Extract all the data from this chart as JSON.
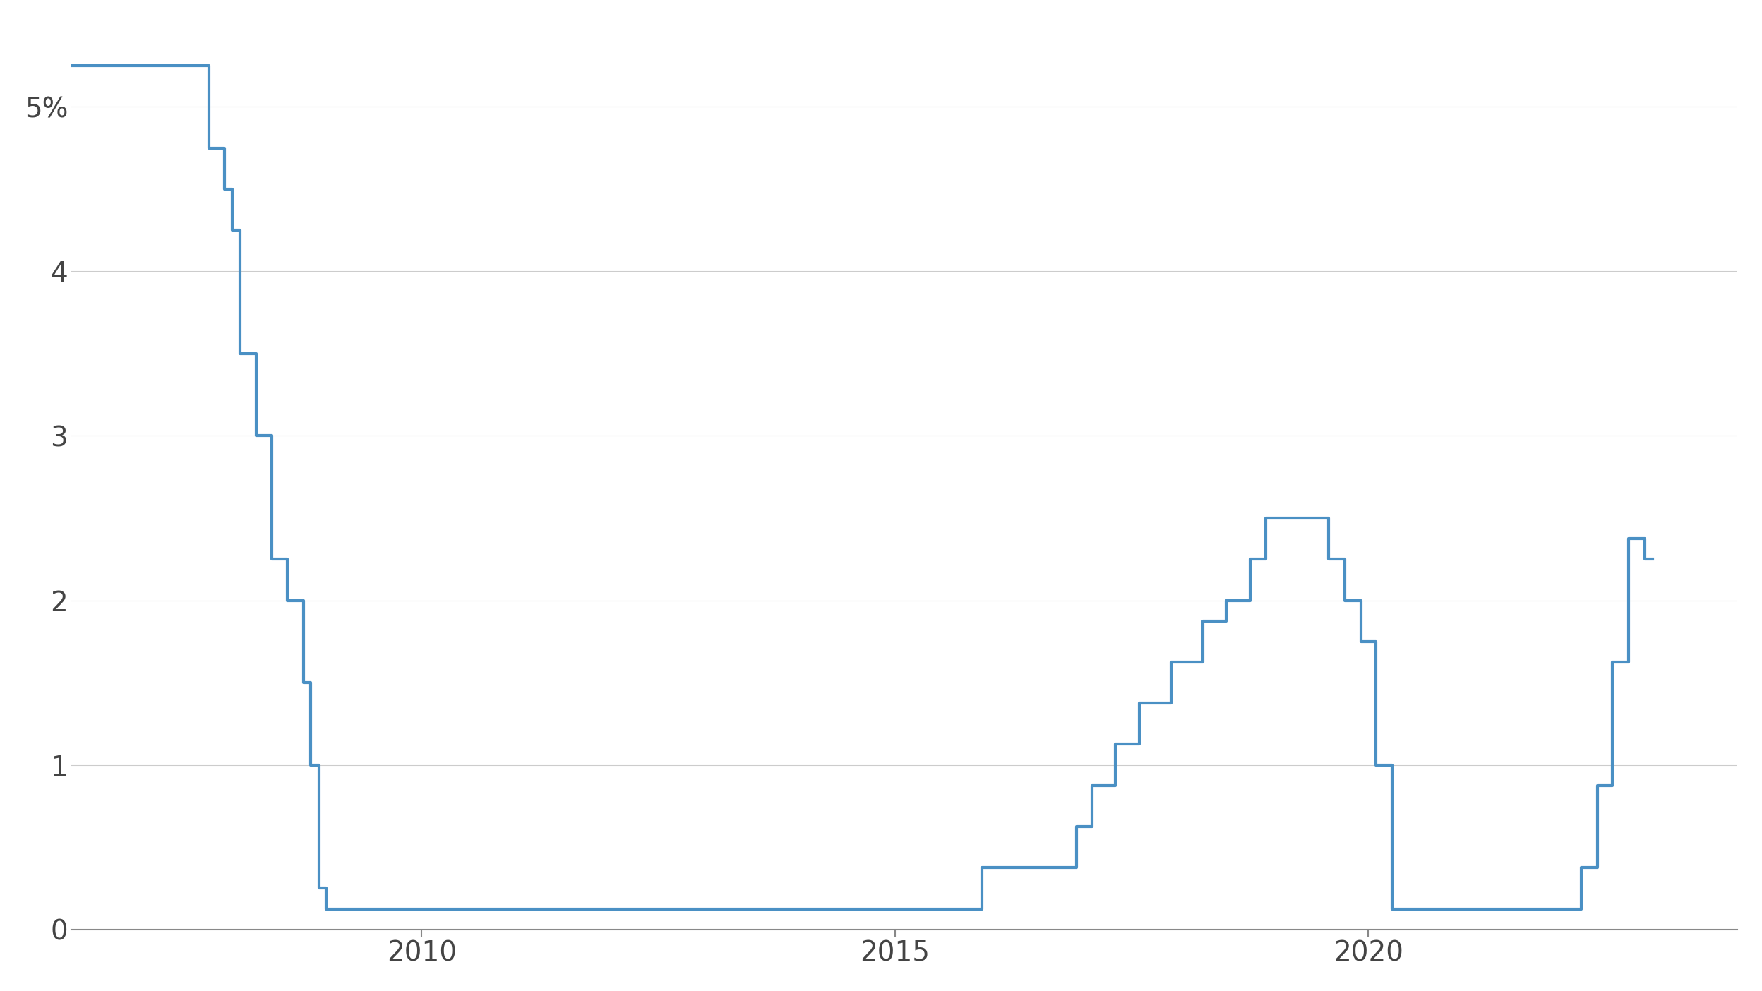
{
  "line_color": "#4a90c4",
  "background_color": "#ffffff",
  "line_width": 3.0,
  "yticks": [
    0,
    1,
    2,
    3,
    4,
    5
  ],
  "ytick_labels": [
    "0",
    "1",
    "2",
    "3",
    "4",
    "5%"
  ],
  "xticks": [
    2010,
    2015,
    2020
  ],
  "xlim": [
    2006.3,
    2023.9
  ],
  "ylim": [
    0,
    5.5
  ],
  "grid_color": "#cccccc",
  "grid_linewidth": 0.8,
  "rate_steps": [
    [
      2006.3,
      5.25
    ],
    [
      2007.75,
      4.75
    ],
    [
      2007.92,
      4.5
    ],
    [
      2008.0,
      4.25
    ],
    [
      2008.08,
      3.5
    ],
    [
      2008.25,
      3.0
    ],
    [
      2008.42,
      2.25
    ],
    [
      2008.58,
      2.0
    ],
    [
      2008.75,
      1.5
    ],
    [
      2008.83,
      1.0
    ],
    [
      2008.92,
      0.25
    ],
    [
      2008.99,
      0.125
    ],
    [
      2015.92,
      0.375
    ],
    [
      2016.92,
      0.625
    ],
    [
      2017.08,
      0.875
    ],
    [
      2017.33,
      1.125
    ],
    [
      2017.58,
      1.375
    ],
    [
      2017.92,
      1.625
    ],
    [
      2018.25,
      1.875
    ],
    [
      2018.5,
      2.0
    ],
    [
      2018.75,
      2.25
    ],
    [
      2018.92,
      2.5
    ],
    [
      2019.58,
      2.25
    ],
    [
      2019.75,
      2.0
    ],
    [
      2019.92,
      1.75
    ],
    [
      2020.08,
      1.0
    ],
    [
      2020.25,
      0.125
    ],
    [
      2022.25,
      0.375
    ],
    [
      2022.42,
      0.875
    ],
    [
      2022.58,
      1.625
    ],
    [
      2022.75,
      2.375
    ],
    [
      2022.92,
      2.25
    ],
    [
      2023.0,
      2.25
    ]
  ]
}
